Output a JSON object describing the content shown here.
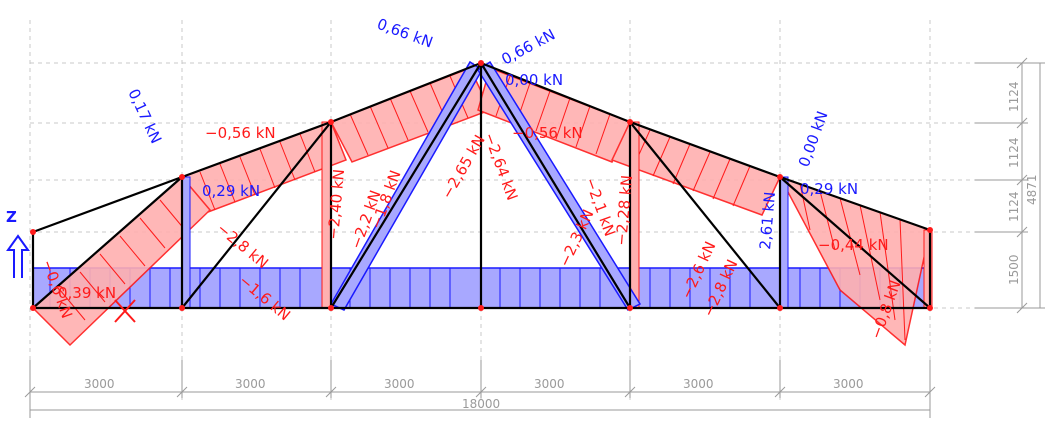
{
  "colors": {
    "tension": "#1a1aff",
    "compression": "#ff1a1a",
    "tension_fill": "#a8a8ff",
    "compression_fill": "#ffb0b0",
    "member": "#000000",
    "grid": "#c8c8c8",
    "dimension": "#9a9a9a"
  },
  "labels": {
    "top_left_rafter_top": "0,66 kN",
    "top_right_rafter_top": "0,66 kN",
    "apex_vertical": "0,00 kN",
    "left_end_rafter": "0,17 kN",
    "right_end_rafter": "0,00 kN",
    "left_rafter_comp": "−0,56 kN",
    "right_rafter_comp": "−0,56 kN",
    "left_post_tension": "0,29 kN",
    "right_post_tension": "0,29 kN",
    "left_post2": "−2,40 kN",
    "left_diag_a": "−2,2 kN",
    "left_diag_b": "−1,8 kN",
    "apex_left": "−2,65 kN",
    "apex_right": "−2,64 kN",
    "right_diag_a": "−2,3 kN",
    "right_diag_b": "−2,1 kN",
    "right_post2": "−2,28 kN",
    "right_post_tension2": "2,61 kN",
    "right_end_comp": "−0,44 kN",
    "left_brace_a": "−2,8 kN",
    "left_brace_b": "−1,6 kN",
    "right_brace_a": "−2,6 kN",
    "right_brace_b": "−2,8 kN",
    "bottom_chord": "0,39 kN",
    "left_end_comp": "−0,6 kN",
    "right_end_comp2": "−0,8 kN",
    "axis_z": "Z"
  },
  "dimensions": {
    "spans": [
      "3000",
      "3000",
      "3000",
      "3000",
      "3000",
      "3000"
    ],
    "total": "18000",
    "heights": [
      "1124",
      "1124",
      "1124",
      "1500"
    ],
    "total_height": "4871"
  }
}
